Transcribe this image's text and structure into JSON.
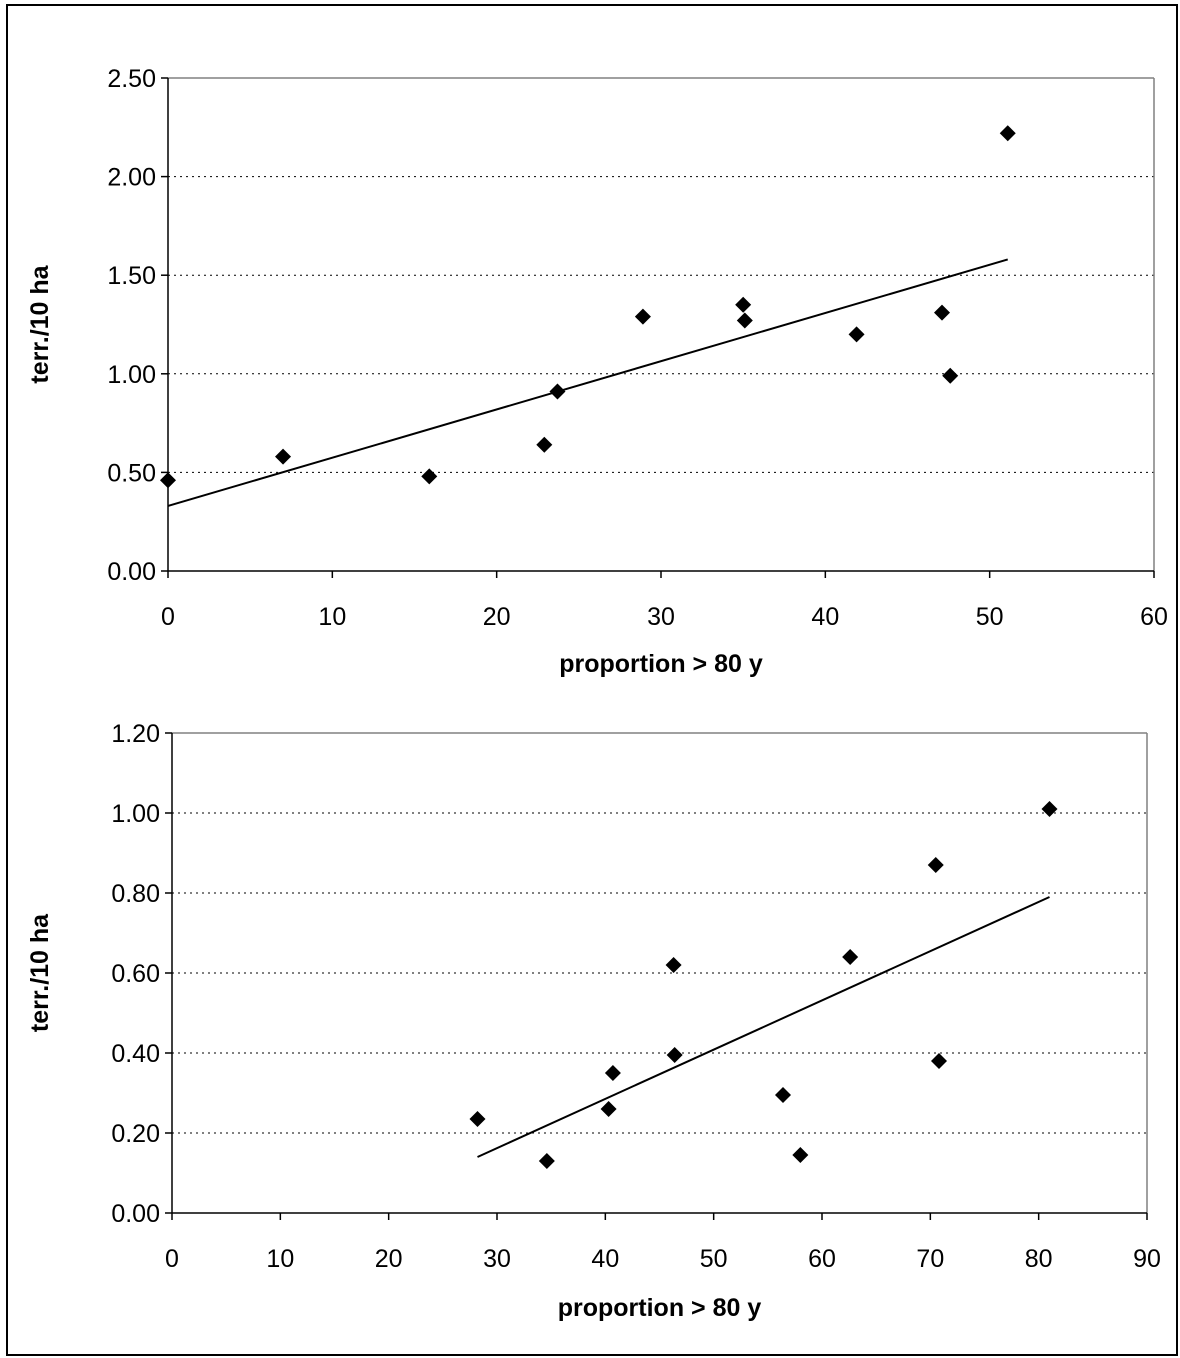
{
  "chart_data": [
    {
      "type": "scatter",
      "xlabel": "proportion > 80 y",
      "ylabel": "terr./10 ha",
      "xlim": [
        0,
        60
      ],
      "ylim": [
        0,
        2.5
      ],
      "xticks": [
        0,
        10,
        20,
        30,
        40,
        50,
        60
      ],
      "yticks": [
        0,
        0.5,
        1.0,
        1.5,
        2.0,
        2.5
      ],
      "ytick_decimals": 2,
      "grid": "horizontal dotted",
      "marker": "diamond",
      "points": [
        {
          "x": 0,
          "y": 0.46
        },
        {
          "x": 7,
          "y": 0.58
        },
        {
          "x": 15.9,
          "y": 0.48
        },
        {
          "x": 22.9,
          "y": 0.64
        },
        {
          "x": 23.7,
          "y": 0.91
        },
        {
          "x": 28.9,
          "y": 1.29
        },
        {
          "x": 35,
          "y": 1.35
        },
        {
          "x": 35.1,
          "y": 1.27
        },
        {
          "x": 41.9,
          "y": 1.2
        },
        {
          "x": 47.1,
          "y": 1.31
        },
        {
          "x": 47.6,
          "y": 0.99
        },
        {
          "x": 51.1,
          "y": 2.22
        }
      ],
      "trendline": {
        "x": [
          0,
          51.1
        ],
        "y": [
          0.33,
          1.58
        ]
      }
    },
    {
      "type": "scatter",
      "xlabel": "proportion > 80 y",
      "ylabel": "terr./10 ha",
      "xlim": [
        0,
        90
      ],
      "ylim": [
        0,
        1.2
      ],
      "xticks": [
        0,
        10,
        20,
        30,
        40,
        50,
        60,
        70,
        80,
        90
      ],
      "yticks": [
        0,
        0.2,
        0.4,
        0.6,
        0.8,
        1.0,
        1.2
      ],
      "ytick_decimals": 2,
      "grid": "horizontal dotted",
      "marker": "diamond",
      "points": [
        {
          "x": 28.2,
          "y": 0.235
        },
        {
          "x": 34.6,
          "y": 0.13
        },
        {
          "x": 40.3,
          "y": 0.26
        },
        {
          "x": 40.7,
          "y": 0.35
        },
        {
          "x": 46.3,
          "y": 0.62
        },
        {
          "x": 46.4,
          "y": 0.395
        },
        {
          "x": 56.4,
          "y": 0.295
        },
        {
          "x": 58,
          "y": 0.145
        },
        {
          "x": 62.6,
          "y": 0.64
        },
        {
          "x": 70.5,
          "y": 0.87
        },
        {
          "x": 70.8,
          "y": 0.38
        },
        {
          "x": 81,
          "y": 1.01
        }
      ],
      "trendline": {
        "x": [
          28.2,
          81
        ],
        "y": [
          0.14,
          0.79
        ]
      }
    }
  ]
}
